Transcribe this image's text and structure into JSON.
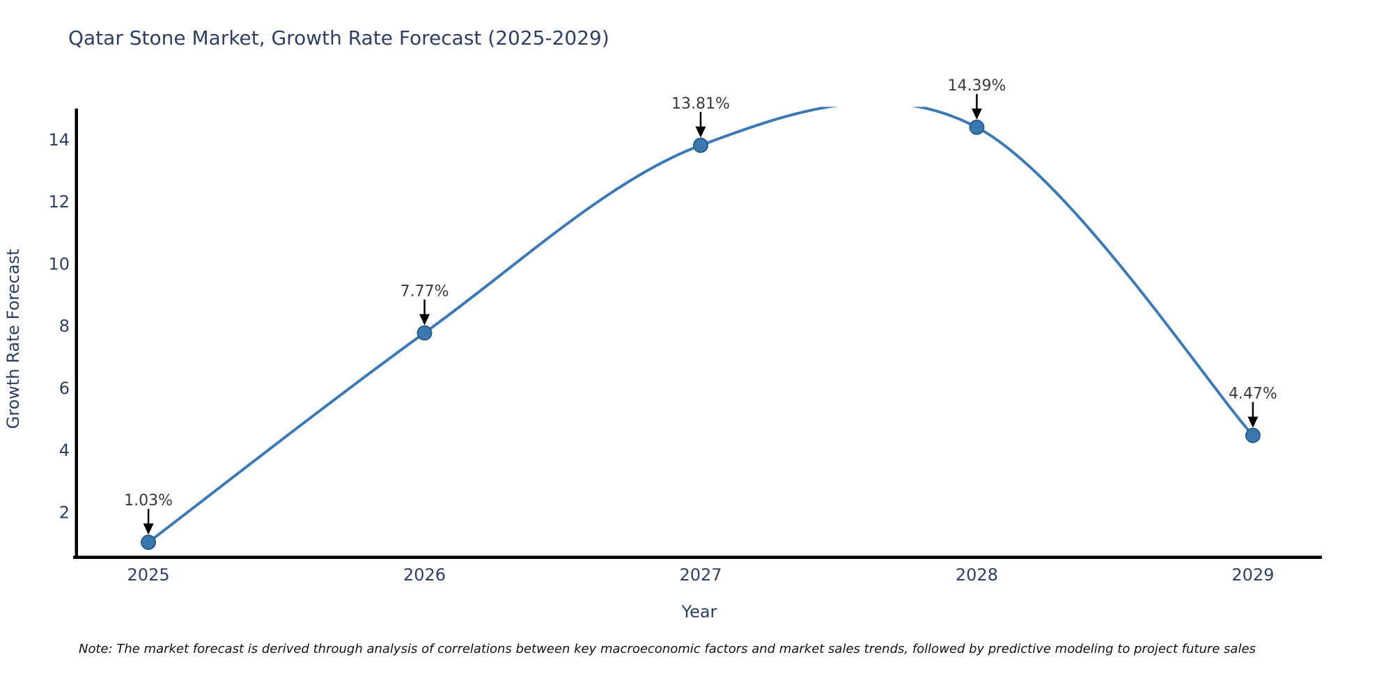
{
  "title": "Qatar Stone Market, Growth Rate Forecast (2025-2029)",
  "note": "Note: The market forecast is derived through analysis of correlations between key macroeconomic factors and market sales trends, followed by predictive modeling to project future sales",
  "chart_data": {
    "type": "line",
    "title": "Qatar Stone Market, Growth Rate Forecast (2025-2029)",
    "xlabel": "Year",
    "ylabel": "Growth Rate Forecast",
    "x": [
      2025,
      2026,
      2027,
      2028,
      2029
    ],
    "values": [
      1.03,
      7.77,
      13.81,
      14.39,
      4.47
    ],
    "point_labels": [
      "1.03%",
      "7.77%",
      "13.81%",
      "14.39%",
      "4.47%"
    ],
    "yticks": [
      2,
      4,
      6,
      8,
      10,
      12,
      14
    ],
    "xlim": [
      2024.74,
      2029.25
    ],
    "ylim": [
      0.54,
      14.97
    ],
    "line_shape": "spline",
    "grid": false,
    "legend": "none",
    "colors": {
      "line": "#3d7ab5",
      "marker_fill": "#3b78b0",
      "marker_edge": "#2b5c8a",
      "axis": "#000000",
      "tick_text": "#2e3f5f",
      "title_text": "#2e3f5f",
      "annotation_text": "#3a3a3a",
      "arrow": "#000000",
      "note_text": "#111111"
    }
  }
}
